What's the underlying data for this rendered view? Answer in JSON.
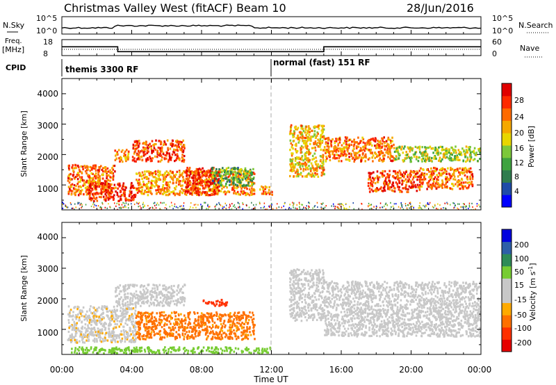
{
  "header": {
    "station": "Christmas Valley West (fitACF)",
    "beam": "Beam 10",
    "date": "28/Jun/2016"
  },
  "noise_panel": {
    "left_label": "N.Sky",
    "right_label": "N.Search",
    "tick_top": "10^5",
    "tick_bottom": "10^0"
  },
  "freq_panel": {
    "left_label_1": "Freq.",
    "left_label_2": "[MHz]",
    "right_label": "Nave",
    "left_ticks": [
      "18",
      "8"
    ],
    "right_ticks": [
      "60",
      "0"
    ],
    "freq_steps": [
      {
        "start": 0,
        "end": 3.2,
        "mhz": 13.5
      },
      {
        "start": 3.2,
        "end": 15.0,
        "mhz": 10.5
      },
      {
        "start": 15.0,
        "end": 24.0,
        "mhz": 13.5
      }
    ],
    "nave_level": 12
  },
  "cpid": {
    "label": "CPID",
    "segments": [
      {
        "start_hour": 0,
        "text": "themis 3300 RF"
      },
      {
        "start_hour": 12,
        "text": "normal (fast) 151 RF"
      }
    ]
  },
  "power_panel": {
    "ylabel": "Slant Range [km]",
    "yticks": [
      "1000",
      "2000",
      "3000",
      "4000"
    ],
    "colorbar_label": "Power [dB]",
    "colorbar_ticks": [
      "4",
      "8",
      "12",
      "16",
      "20",
      "24",
      "28"
    ]
  },
  "velocity_panel": {
    "ylabel": "Slant Range [km]",
    "yticks": [
      "1000",
      "2000",
      "3000",
      "4000"
    ],
    "colorbar_label": "Velocity [m s",
    "colorbar_label_sup": "-1",
    "colorbar_label_end": "]",
    "colorbar_ticks": [
      "200",
      "100",
      "50",
      "15",
      "-15",
      "-50",
      "-100",
      "-200"
    ]
  },
  "xaxis": {
    "label": "Time UT",
    "ticks": [
      "00:00",
      "04:00",
      "08:00",
      "12:00",
      "16:00",
      "20:00",
      "00:00"
    ]
  },
  "chart_data": {
    "type": "heatmap",
    "x_range_hours": [
      0,
      24
    ],
    "y_range_km": [
      180,
      4500
    ],
    "marker_hour": 12,
    "power_colorscale": [
      "#0000ff",
      "#1e4ba8",
      "#2f7c4e",
      "#3fa33f",
      "#7cc83a",
      "#e8d600",
      "#f5a800",
      "#ff6a00",
      "#ff2a00",
      "#e00000"
    ],
    "velocity_colorscale": [
      "#e60000",
      "#ff3000",
      "#ff7000",
      "#ffaa00",
      "#c8c8c8",
      "#c8c8c8",
      "#77cc33",
      "#2e8b57",
      "#2e5fa8",
      "#0000dd"
    ],
    "power_regions": [
      {
        "t0": 0.3,
        "t1": 3.0,
        "r0": 700,
        "r1": 1700,
        "p": 24
      },
      {
        "t0": 1.5,
        "t1": 4.2,
        "r0": 500,
        "r1": 1100,
        "p": 28
      },
      {
        "t0": 3.0,
        "t1": 3.8,
        "r0": 1800,
        "r1": 2200,
        "p": 22
      },
      {
        "t0": 4.0,
        "t1": 7.0,
        "r0": 1800,
        "r1": 2500,
        "p": 26
      },
      {
        "t0": 4.2,
        "t1": 11.0,
        "r0": 700,
        "r1": 1500,
        "p": 22
      },
      {
        "t0": 7.0,
        "t1": 9.0,
        "r0": 700,
        "r1": 1600,
        "p": 28
      },
      {
        "t0": 8.5,
        "t1": 11.0,
        "r0": 1000,
        "r1": 1600,
        "p": 12
      },
      {
        "t0": 11.3,
        "t1": 12.0,
        "r0": 700,
        "r1": 1000,
        "p": 22
      },
      {
        "t0": 13.0,
        "t1": 15.0,
        "r0": 1300,
        "r1": 3000,
        "p": 20
      },
      {
        "t0": 15.0,
        "t1": 19.0,
        "r0": 1800,
        "r1": 2600,
        "p": 24
      },
      {
        "t0": 17.5,
        "t1": 20.5,
        "r0": 800,
        "r1": 1500,
        "p": 26
      },
      {
        "t0": 20.5,
        "t1": 23.5,
        "r0": 900,
        "r1": 1600,
        "p": 24
      },
      {
        "t0": 19.0,
        "t1": 24.0,
        "r0": 1800,
        "r1": 2300,
        "p": 16
      }
    ],
    "velocity_regions": [
      {
        "t0": 0.3,
        "t1": 4.2,
        "r0": 600,
        "r1": 1800,
        "v": -5
      },
      {
        "t0": 4.2,
        "t1": 11.0,
        "r0": 700,
        "r1": 1600,
        "v": -60
      },
      {
        "t0": 8.0,
        "t1": 9.5,
        "r0": 1800,
        "r1": 2000,
        "v": -130
      },
      {
        "t0": 3.0,
        "t1": 7.0,
        "r0": 1800,
        "r1": 2500,
        "v": 0
      },
      {
        "t0": 13.0,
        "t1": 15.0,
        "r0": 1300,
        "r1": 3000,
        "v": 0
      },
      {
        "t0": 15.0,
        "t1": 24.0,
        "r0": 800,
        "r1": 2600,
        "v": 0
      },
      {
        "t0": 0.5,
        "t1": 12.0,
        "r0": 250,
        "r1": 450,
        "v": 30
      }
    ]
  }
}
